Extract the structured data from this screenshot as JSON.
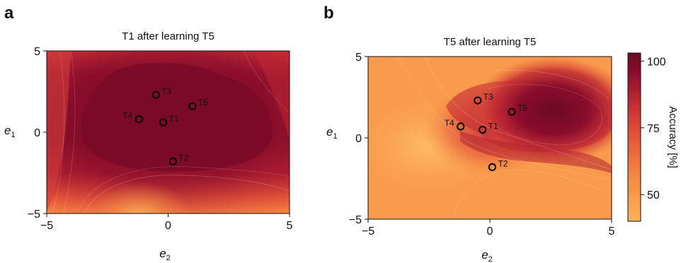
{
  "chart_data": [
    {
      "type": "heatmap",
      "panel": "a",
      "title": "T1 after learning T5",
      "xlabel": "e",
      "xlabel_sub": "2",
      "ylabel": "e",
      "ylabel_sub": "1",
      "xlim": [
        -5,
        5
      ],
      "ylim": [
        -5,
        5
      ],
      "xticks": [
        "−5",
        "0",
        "5"
      ],
      "yticks": [
        "5",
        "0",
        "−5"
      ],
      "points": [
        {
          "label": "T1",
          "x": -0.2,
          "y": 0.6
        },
        {
          "label": "T2",
          "x": 0.2,
          "y": -1.8
        },
        {
          "label": "T3",
          "x": -0.5,
          "y": 2.3
        },
        {
          "label": "T4",
          "x": -1.2,
          "y": 0.8
        },
        {
          "label": "T5",
          "x": 1.0,
          "y": 1.6
        }
      ],
      "surface": "High accuracy (~100%) plateau covering most of the upper-center region, decreasing toward the edges and especially toward the bottom (~50%)."
    },
    {
      "type": "heatmap",
      "panel": "b",
      "title": "T5 after learning T5",
      "xlabel": "e",
      "xlabel_sub": "2",
      "ylabel": "e",
      "ylabel_sub": "1",
      "xlim": [
        -5,
        5
      ],
      "ylim": [
        -5,
        5
      ],
      "xticks": [
        "−5",
        "0",
        "5"
      ],
      "yticks": [
        "5",
        "0",
        "−5"
      ],
      "points": [
        {
          "label": "T1",
          "x": -0.3,
          "y": 0.5
        },
        {
          "label": "T2",
          "x": 0.1,
          "y": -1.8
        },
        {
          "label": "T3",
          "x": -0.5,
          "y": 2.3
        },
        {
          "label": "T4",
          "x": -1.2,
          "y": 0.7
        },
        {
          "label": "T5",
          "x": 0.9,
          "y": 1.6
        }
      ],
      "surface": "Accuracy peak (~100%) centered near T5 in the upper right, with a ridge toward T1/T4; most of the plane is low (~45%)."
    }
  ],
  "colorbar": {
    "label": "Accuracy [%]",
    "range": [
      40,
      103
    ],
    "ticks": [
      "100",
      "75",
      "50"
    ],
    "tick_values": [
      100,
      75,
      50
    ],
    "colors": [
      "#fdb35a",
      "#f68a44",
      "#e5573a",
      "#c32b33",
      "#8b0d2c",
      "#6b0a24"
    ]
  },
  "labels": {
    "panel_a": "a",
    "panel_b": "b"
  }
}
